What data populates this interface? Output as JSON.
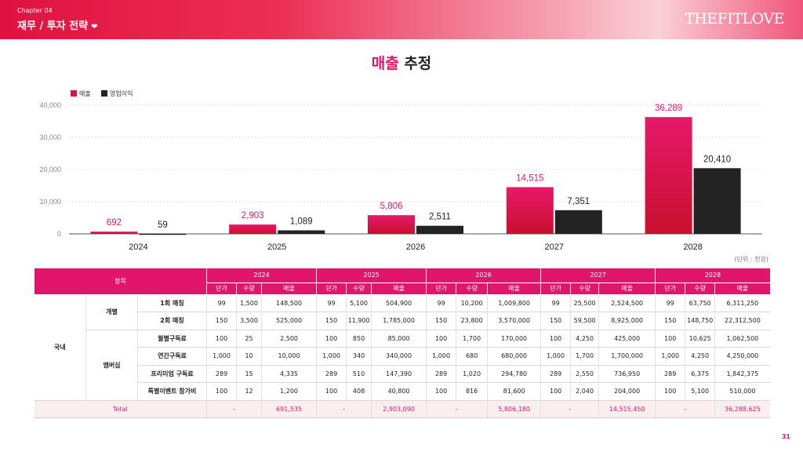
{
  "header": {
    "chapter": "Chapter 04",
    "section": "재무 / 투자 전략",
    "section_icon": "❤",
    "logo": "THEFITLOVE"
  },
  "title": {
    "accent": "매출",
    "rest": "추정"
  },
  "colors": {
    "accent": "#e0156b",
    "revenue_bar": "#d8124a",
    "profit_bar": "#232323",
    "table_header": "#e0156b",
    "total_row_bg": "#fbeeee"
  },
  "chart_data": {
    "type": "bar",
    "categories": [
      "2024",
      "2025",
      "2026",
      "2027",
      "2028"
    ],
    "series": [
      {
        "name": "매출",
        "values": [
          692,
          2903,
          5806,
          14515,
          36289
        ],
        "labels": [
          "692",
          "2,903",
          "5,806",
          "14,515",
          "36,289"
        ]
      },
      {
        "name": "영업이익",
        "values": [
          59,
          1089,
          2511,
          7351,
          20410
        ],
        "labels": [
          "59",
          "1,089",
          "2,511",
          "7,351",
          "20,410"
        ]
      }
    ],
    "yticks": [
      "0",
      "10,000",
      "20,000",
      "30,000",
      "40,000"
    ],
    "ylim": [
      0,
      40000
    ],
    "grid": true,
    "legend": "top-left"
  },
  "unit_note": "(단위 : 천원)",
  "table": {
    "header_item": "항목",
    "years": [
      "2024",
      "2025",
      "2026",
      "2027",
      "2028"
    ],
    "subheaders": [
      "단가",
      "수량",
      "매출"
    ],
    "domestic_label": "국내",
    "groups": [
      "개별",
      "멤버십"
    ],
    "rows": [
      {
        "item": "1회 매칭",
        "values": [
          "99",
          "1,500",
          "148,500",
          "99",
          "5,100",
          "504,900",
          "99",
          "10,200",
          "1,009,800",
          "99",
          "25,500",
          "2,524,500",
          "99",
          "63,750",
          "6,311,250"
        ]
      },
      {
        "item": "2회 매칭",
        "values": [
          "150",
          "3,500",
          "525,000",
          "150",
          "11,900",
          "1,785,000",
          "150",
          "23,800",
          "3,570,000",
          "150",
          "59,500",
          "8,925,000",
          "150",
          "148,750",
          "22,312,500"
        ]
      },
      {
        "item": "월별구독료",
        "values": [
          "100",
          "25",
          "2,500",
          "100",
          "850",
          "85,000",
          "100",
          "1,700",
          "170,000",
          "100",
          "4,250",
          "425,000",
          "100",
          "10,625",
          "1,062,500"
        ]
      },
      {
        "item": "연간구독료",
        "values": [
          "1,000",
          "10",
          "10,000",
          "1,000",
          "340",
          "340,000",
          "1,000",
          "680",
          "680,000",
          "1,000",
          "1,700",
          "1,700,000",
          "1,000",
          "4,250",
          "4,250,000"
        ]
      },
      {
        "item": "프리미엄 구독료",
        "values": [
          "289",
          "15",
          "4,335",
          "289",
          "510",
          "147,390",
          "289",
          "1,020",
          "294,780",
          "289",
          "2,550",
          "736,950",
          "289",
          "6,375",
          "1,842,375"
        ]
      },
      {
        "item": "특별이벤트 참가비",
        "values": [
          "100",
          "12",
          "1,200",
          "100",
          "408",
          "40,800",
          "100",
          "816",
          "81,600",
          "100",
          "2,040",
          "204,000",
          "100",
          "5,100",
          "510,000"
        ]
      }
    ],
    "total": {
      "label": "Total",
      "values": [
        "-",
        "691,535",
        "-",
        "2,903,090",
        "-",
        "5,806,180",
        "-",
        "14,515,450",
        "-",
        "36,288,625"
      ]
    }
  },
  "page_number": "31"
}
